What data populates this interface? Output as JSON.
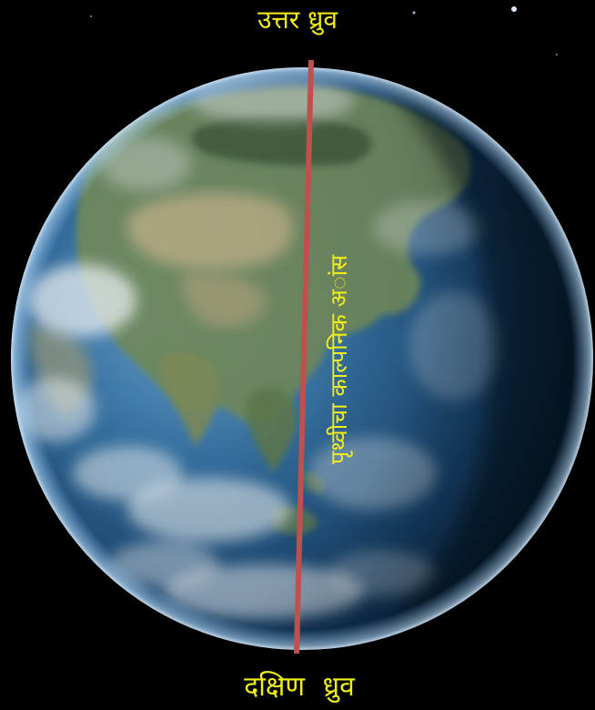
{
  "labels": {
    "north_pole": "उत्तर ध्रुव",
    "south_pole": "दक्षिण ध्रुव",
    "axis": "पृथ्वीचा काल्पनिक अांस"
  },
  "colors": {
    "background": "#000000",
    "label_text": "#f2ee1c",
    "axis_line": "#c0504d",
    "ocean_deep": "#0b2a4a",
    "ocean_lit": "#4f8fc7",
    "land_green": "#5e7b52",
    "land_desert": "#b9b08a",
    "cloud": "#e8eef2"
  }
}
